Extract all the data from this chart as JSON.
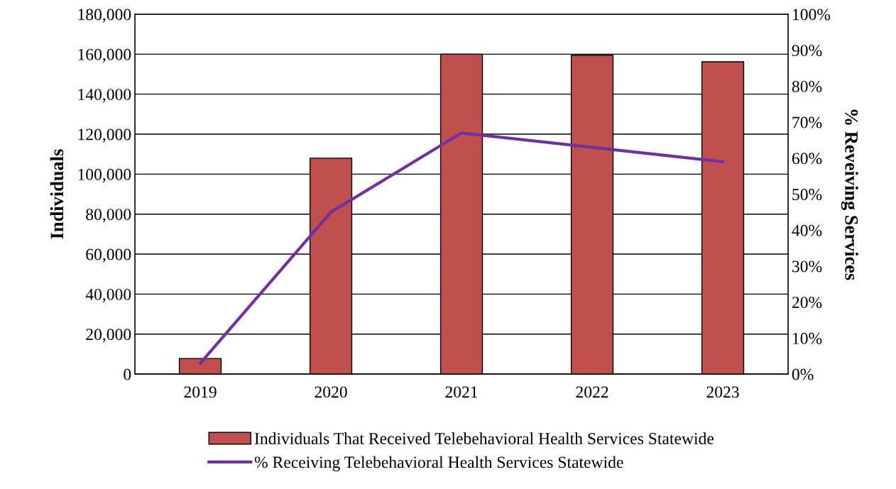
{
  "chart_data": {
    "type": "bar",
    "ylabel": "Individuals",
    "y2label": "% Reveiving Services",
    "categories": [
      "2019",
      "2020",
      "2021",
      "2022",
      "2023"
    ],
    "series": [
      {
        "name": "Individuals That Received Telebehavioral Health Services Statewide",
        "color": "#c0504d",
        "values": [
          7800,
          108000,
          160000,
          159400,
          156200
        ]
      },
      {
        "name": "% Receiving Telebehavioral Health Services Statewide",
        "type": "line",
        "axis": "y2",
        "color": "#7030a0",
        "values": [
          3,
          45,
          67,
          63,
          59
        ]
      }
    ],
    "ylim": [
      0,
      180000
    ],
    "yticks": [
      {
        "value": 0,
        "label": "0"
      },
      {
        "value": 20000,
        "label": "20,000"
      },
      {
        "value": 40000,
        "label": "40,000"
      },
      {
        "value": 60000,
        "label": "60,000"
      },
      {
        "value": 80000,
        "label": "80,000"
      },
      {
        "value": 100000,
        "label": "100,000"
      },
      {
        "value": 120000,
        "label": "120,000"
      },
      {
        "value": 140000,
        "label": "140,000"
      },
      {
        "value": 160000,
        "label": "160,000"
      },
      {
        "value": 180000,
        "label": "180,000"
      }
    ],
    "y2lim": [
      0,
      100
    ],
    "y2ticks": [
      {
        "value": 0,
        "label": "0%"
      },
      {
        "value": 10,
        "label": "10%"
      },
      {
        "value": 20,
        "label": "20%"
      },
      {
        "value": 30,
        "label": "30%"
      },
      {
        "value": 40,
        "label": "40%"
      },
      {
        "value": 50,
        "label": "50%"
      },
      {
        "value": 60,
        "label": "60%"
      },
      {
        "value": 70,
        "label": "70%"
      },
      {
        "value": 80,
        "label": "80%"
      },
      {
        "value": 90,
        "label": "90%"
      },
      {
        "value": 100,
        "label": "100%"
      }
    ],
    "grid": "y",
    "legend": "bottom",
    "marker": "none",
    "line_style": "solid"
  }
}
